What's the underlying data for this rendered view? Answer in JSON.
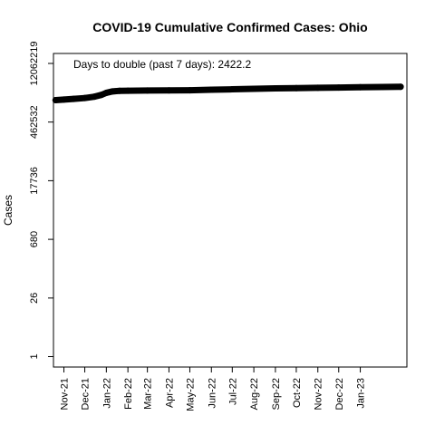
{
  "chart_data": {
    "type": "line",
    "title": "COVID-19 Cumulative Confirmed Cases: Ohio",
    "xlabel": "",
    "ylabel": "Cases",
    "y_scale": "log",
    "annotation": "Days to double (past 7 days): 2422.2",
    "x_ticks": [
      "Nov-21",
      "Dec-21",
      "Jan-22",
      "Feb-22",
      "Mar-22",
      "Apr-22",
      "May-22",
      "Jun-22",
      "Jul-22",
      "Aug-22",
      "Sep-22",
      "Oct-22",
      "Nov-22",
      "Dec-22",
      "Jan-23"
    ],
    "y_ticks": [
      1,
      26,
      680,
      17736,
      462532,
      12062219
    ],
    "xlim": [
      "2021-10-17",
      "2023-03-09"
    ],
    "ylim": [
      0.56,
      21000000
    ],
    "grid": false,
    "legend": "none",
    "line_color": "#000000",
    "series": [
      {
        "x": [
          "2021-10-20",
          "2021-11-01",
          "2021-11-15",
          "2021-12-01",
          "2021-12-15",
          "2021-12-25",
          "2022-01-01",
          "2022-01-10",
          "2022-01-20",
          "2022-02-01",
          "2022-03-01",
          "2022-04-01",
          "2022-05-01",
          "2022-06-01",
          "2022-07-01",
          "2022-08-01",
          "2022-09-01",
          "2022-10-01",
          "2022-11-01",
          "2022-12-01",
          "2023-01-01",
          "2023-02-01",
          "2023-02-28"
        ],
        "values": [
          1570000,
          1620000,
          1680000,
          1760000,
          1900000,
          2100000,
          2350000,
          2550000,
          2620000,
          2650000,
          2670000,
          2690000,
          2710000,
          2800000,
          2860000,
          2950000,
          3020000,
          3060000,
          3110000,
          3160000,
          3220000,
          3260000,
          3290000
        ]
      }
    ]
  }
}
